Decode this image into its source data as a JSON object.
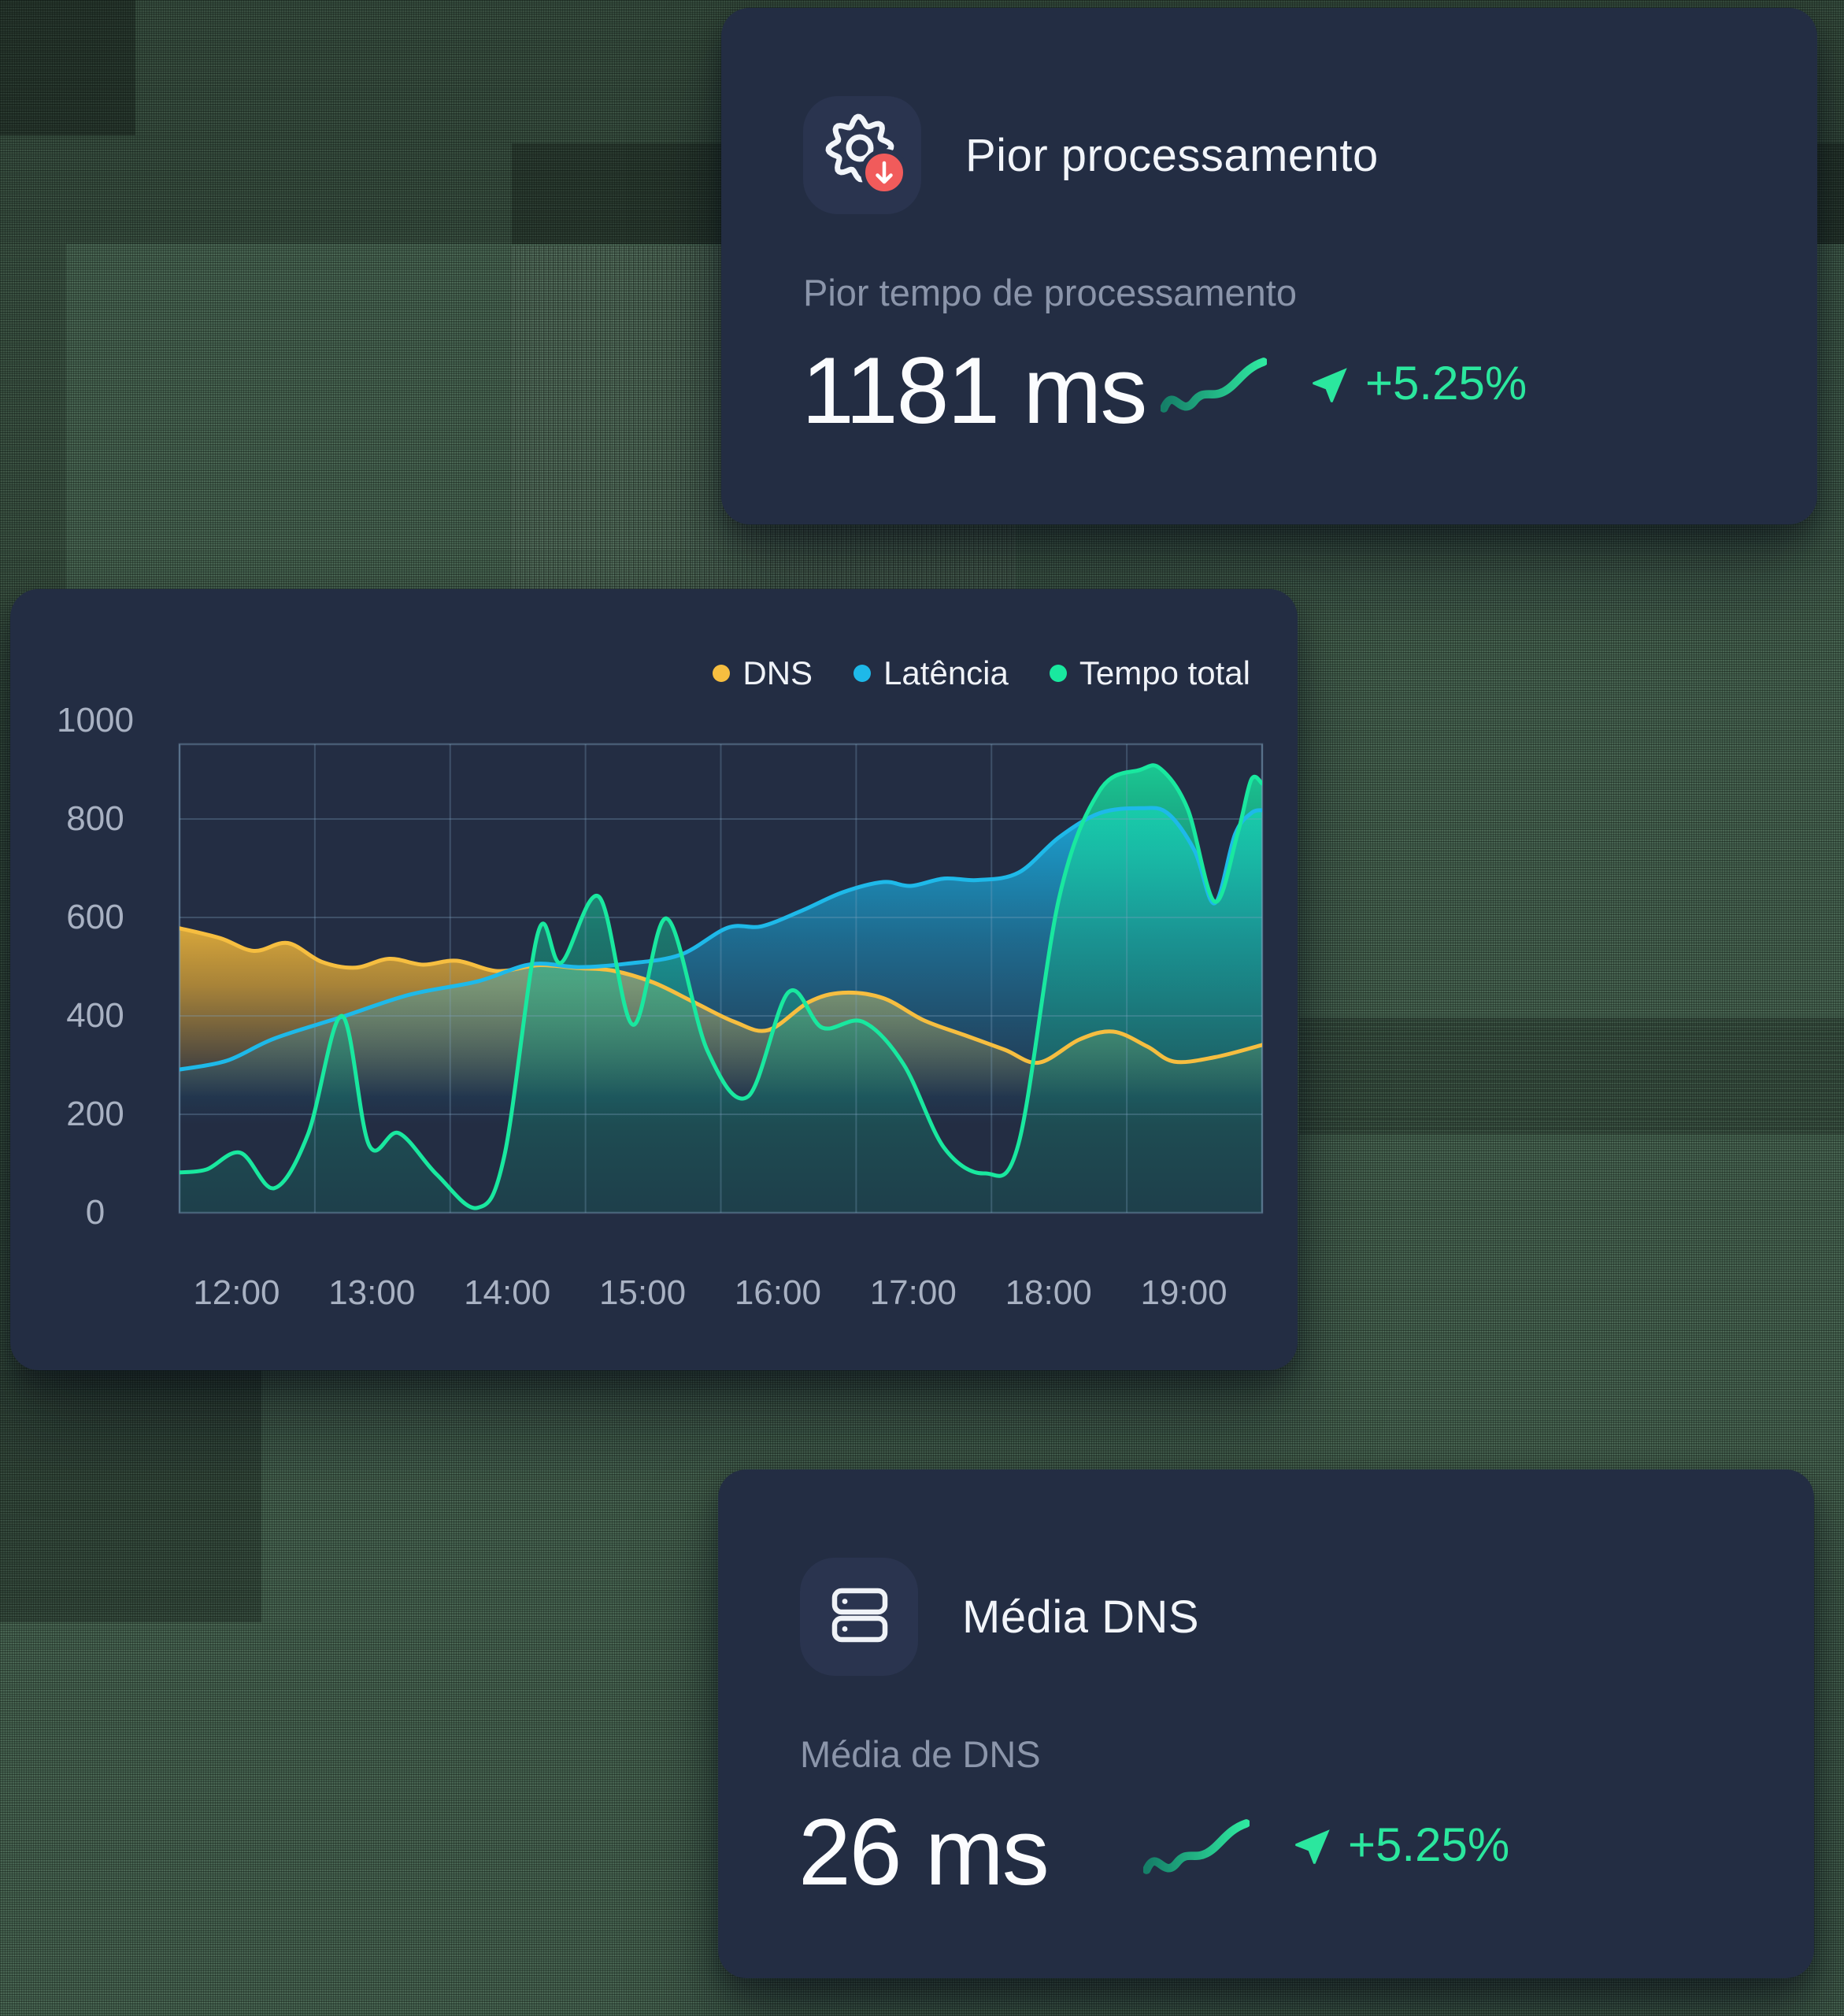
{
  "colors": {
    "accent_green": "#2BE79E",
    "badge_red": "#F15B5B",
    "card_bg": "#232D43",
    "tile_bg": "#2A344F",
    "grid_line": "#7FA3BF",
    "axis_label": "#A8B1C2"
  },
  "cards": {
    "top": {
      "icon": "gear-download-icon",
      "title": "Pior processamento",
      "subtitle": "Pior tempo de processamento",
      "value": "1181 ms",
      "change": "+5.25%"
    },
    "bottom": {
      "icon": "server-icon",
      "title": "Média DNS",
      "subtitle": "Média de DNS",
      "value": "26 ms",
      "change": "+5.25%"
    }
  },
  "chart_data": {
    "type": "area",
    "title": "",
    "xlabel": "",
    "ylabel": "",
    "ylim": [
      0,
      1000
    ],
    "x_range_hours": [
      11.8,
      19.8
    ],
    "grid": true,
    "legend_position": "top-right",
    "y_ticks": [
      "1000",
      "800",
      "600",
      "400",
      "200",
      "0"
    ],
    "y_tick_values": [
      1000,
      800,
      600,
      400,
      200,
      0
    ],
    "x_ticks": [
      "12:00",
      "13:00",
      "14:00",
      "15:00",
      "16:00",
      "17:00",
      "18:00",
      "19:00"
    ],
    "x_tick_hours": [
      12,
      13,
      14,
      15,
      16,
      17,
      18,
      19
    ],
    "series": [
      {
        "name": "DNS",
        "color": "#F6BE40",
        "points": [
          [
            11.8,
            578
          ],
          [
            12.1,
            558
          ],
          [
            12.35,
            532
          ],
          [
            12.6,
            548
          ],
          [
            12.85,
            510
          ],
          [
            13.1,
            498
          ],
          [
            13.35,
            516
          ],
          [
            13.6,
            504
          ],
          [
            13.85,
            512
          ],
          [
            14.15,
            491
          ],
          [
            14.45,
            503
          ],
          [
            14.75,
            497
          ],
          [
            15.0,
            492
          ],
          [
            15.3,
            468
          ],
          [
            15.6,
            428
          ],
          [
            15.9,
            388
          ],
          [
            16.15,
            371
          ],
          [
            16.45,
            428
          ],
          [
            16.7,
            447
          ],
          [
            17.0,
            436
          ],
          [
            17.3,
            391
          ],
          [
            17.6,
            361
          ],
          [
            17.9,
            331
          ],
          [
            18.15,
            305
          ],
          [
            18.45,
            352
          ],
          [
            18.7,
            368
          ],
          [
            18.95,
            338
          ],
          [
            19.15,
            307
          ],
          [
            19.45,
            316
          ],
          [
            19.8,
            341
          ]
        ]
      },
      {
        "name": "Latência",
        "color": "#1EB9E9",
        "points": [
          [
            11.8,
            291
          ],
          [
            12.15,
            309
          ],
          [
            12.5,
            354
          ],
          [
            13.0,
            398
          ],
          [
            13.5,
            443
          ],
          [
            14.0,
            470
          ],
          [
            14.4,
            505
          ],
          [
            14.75,
            499
          ],
          [
            15.1,
            506
          ],
          [
            15.5,
            524
          ],
          [
            15.85,
            579
          ],
          [
            16.1,
            582
          ],
          [
            16.4,
            614
          ],
          [
            16.7,
            651
          ],
          [
            17.0,
            672
          ],
          [
            17.2,
            664
          ],
          [
            17.45,
            679
          ],
          [
            17.7,
            676
          ],
          [
            18.0,
            691
          ],
          [
            18.3,
            763
          ],
          [
            18.6,
            812
          ],
          [
            18.9,
            822
          ],
          [
            19.1,
            812
          ],
          [
            19.3,
            736
          ],
          [
            19.45,
            629
          ],
          [
            19.6,
            769
          ],
          [
            19.72,
            812
          ],
          [
            19.8,
            818
          ]
        ]
      },
      {
        "name": "Tempo total",
        "color": "#19E89F",
        "points": [
          [
            11.8,
            82
          ],
          [
            12.0,
            88
          ],
          [
            12.25,
            122
          ],
          [
            12.5,
            50
          ],
          [
            12.75,
            160
          ],
          [
            13.0,
            400
          ],
          [
            13.2,
            138
          ],
          [
            13.42,
            162
          ],
          [
            13.7,
            78
          ],
          [
            14.0,
            10
          ],
          [
            14.2,
            115
          ],
          [
            14.45,
            570
          ],
          [
            14.62,
            508
          ],
          [
            14.9,
            642
          ],
          [
            15.15,
            382
          ],
          [
            15.4,
            598
          ],
          [
            15.7,
            330
          ],
          [
            16.0,
            236
          ],
          [
            16.3,
            448
          ],
          [
            16.55,
            376
          ],
          [
            16.85,
            388
          ],
          [
            17.15,
            302
          ],
          [
            17.45,
            132
          ],
          [
            17.75,
            80
          ],
          [
            18.0,
            140
          ],
          [
            18.3,
            640
          ],
          [
            18.6,
            858
          ],
          [
            18.9,
            900
          ],
          [
            19.05,
            902
          ],
          [
            19.25,
            820
          ],
          [
            19.45,
            632
          ],
          [
            19.62,
            772
          ],
          [
            19.72,
            880
          ],
          [
            19.8,
            872
          ]
        ]
      }
    ]
  }
}
